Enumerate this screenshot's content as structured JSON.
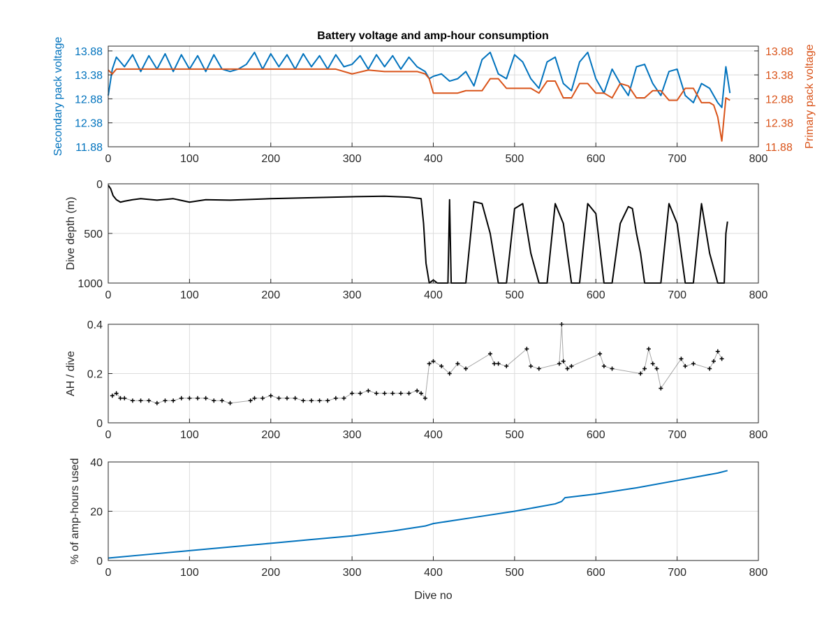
{
  "figure": {
    "title": "Battery voltage and amp-hour consumption",
    "colors": {
      "blue": "#0072BD",
      "orange": "#D95319",
      "black": "#000000",
      "axis": "#262626",
      "grid": "#dcdcdc"
    }
  },
  "chart_data": [
    {
      "type": "line",
      "title": "Battery voltage and amp-hour consumption",
      "xlabel": "",
      "ylabel": "Secondary pack voltage",
      "ylabel_right": "Primary pack voltage",
      "xlim": [
        0,
        800
      ],
      "ylim": [
        11.88,
        13.98
      ],
      "xticks": [
        0,
        100,
        200,
        300,
        400,
        500,
        600,
        700,
        800
      ],
      "yticks": [
        11.88,
        12.38,
        12.88,
        13.38,
        13.88
      ],
      "ytick_labels": [
        "11.88",
        "12.38",
        "12.88",
        "13.38",
        "13.88"
      ],
      "grid": true,
      "series": [
        {
          "color": "#0072BD",
          "axis": "left",
          "x": [
            0,
            5,
            10,
            20,
            30,
            40,
            50,
            60,
            70,
            80,
            90,
            100,
            110,
            120,
            130,
            140,
            150,
            160,
            170,
            180,
            190,
            200,
            210,
            220,
            230,
            240,
            250,
            260,
            270,
            280,
            290,
            300,
            310,
            320,
            330,
            340,
            350,
            360,
            370,
            380,
            390,
            395,
            400,
            410,
            420,
            430,
            440,
            450,
            460,
            470,
            480,
            490,
            500,
            510,
            520,
            530,
            540,
            550,
            560,
            570,
            580,
            590,
            600,
            610,
            620,
            630,
            640,
            650,
            660,
            670,
            680,
            690,
            700,
            710,
            720,
            730,
            740,
            750,
            755,
            760,
            765
          ],
          "y": [
            12.95,
            13.5,
            13.75,
            13.55,
            13.8,
            13.45,
            13.78,
            13.5,
            13.82,
            13.45,
            13.8,
            13.5,
            13.78,
            13.45,
            13.8,
            13.5,
            13.45,
            13.5,
            13.6,
            13.85,
            13.5,
            13.82,
            13.55,
            13.8,
            13.5,
            13.82,
            13.55,
            13.78,
            13.5,
            13.8,
            13.55,
            13.6,
            13.78,
            13.5,
            13.8,
            13.55,
            13.78,
            13.5,
            13.75,
            13.55,
            13.45,
            13.3,
            13.35,
            13.4,
            13.25,
            13.3,
            13.45,
            13.15,
            13.7,
            13.85,
            13.4,
            13.3,
            13.8,
            13.65,
            13.3,
            13.1,
            13.65,
            13.75,
            13.2,
            13.05,
            13.65,
            13.85,
            13.3,
            13.0,
            13.5,
            13.2,
            12.95,
            13.55,
            13.6,
            13.2,
            12.95,
            13.45,
            13.5,
            12.95,
            12.8,
            13.2,
            13.1,
            12.8,
            12.7,
            13.55,
            13.0
          ]
        },
        {
          "color": "#D95319",
          "axis": "right",
          "x": [
            0,
            5,
            10,
            20,
            30,
            40,
            50,
            60,
            70,
            80,
            90,
            100,
            120,
            140,
            160,
            180,
            200,
            220,
            240,
            260,
            280,
            300,
            320,
            340,
            360,
            380,
            390,
            395,
            400,
            410,
            420,
            430,
            440,
            450,
            460,
            470,
            480,
            490,
            500,
            510,
            520,
            530,
            540,
            550,
            560,
            570,
            580,
            590,
            600,
            610,
            620,
            630,
            640,
            650,
            660,
            670,
            680,
            690,
            700,
            710,
            720,
            730,
            740,
            745,
            750,
            755,
            760,
            765
          ],
          "y": [
            13.48,
            13.4,
            13.5,
            13.5,
            13.5,
            13.5,
            13.5,
            13.5,
            13.5,
            13.5,
            13.5,
            13.5,
            13.5,
            13.5,
            13.5,
            13.5,
            13.5,
            13.5,
            13.5,
            13.5,
            13.5,
            13.4,
            13.48,
            13.45,
            13.45,
            13.45,
            13.4,
            13.3,
            13.0,
            13.0,
            13.0,
            13.0,
            13.05,
            13.05,
            13.05,
            13.3,
            13.3,
            13.1,
            13.1,
            13.1,
            13.1,
            13.0,
            13.25,
            13.25,
            12.9,
            12.9,
            13.2,
            13.2,
            13.0,
            13.0,
            12.9,
            13.2,
            13.15,
            12.9,
            12.9,
            13.05,
            13.05,
            12.85,
            12.85,
            13.1,
            13.1,
            12.8,
            12.8,
            12.75,
            12.5,
            12.0,
            12.9,
            12.85
          ]
        }
      ]
    },
    {
      "type": "line",
      "title": "",
      "xlabel": "",
      "ylabel": "Dive depth (m)",
      "xlim": [
        0,
        800
      ],
      "ylim": [
        0,
        1000
      ],
      "y_reversed": true,
      "xticks": [
        0,
        100,
        200,
        300,
        400,
        500,
        600,
        700,
        800
      ],
      "yticks": [
        0,
        500,
        1000
      ],
      "grid": true,
      "series": [
        {
          "color": "#000000",
          "x": [
            0,
            3,
            6,
            10,
            15,
            20,
            30,
            40,
            60,
            80,
            100,
            120,
            150,
            200,
            250,
            300,
            340,
            370,
            385,
            388,
            391,
            395,
            400,
            405,
            418,
            420,
            422,
            430,
            440,
            450,
            460,
            470,
            480,
            490,
            500,
            510,
            520,
            530,
            540,
            550,
            560,
            570,
            580,
            590,
            600,
            610,
            620,
            630,
            640,
            645,
            650,
            655,
            660,
            670,
            680,
            690,
            700,
            710,
            720,
            730,
            740,
            750,
            758,
            760,
            762
          ],
          "y": [
            15,
            50,
            120,
            160,
            185,
            175,
            160,
            150,
            165,
            150,
            185,
            160,
            165,
            150,
            140,
            130,
            125,
            135,
            150,
            400,
            800,
            1000,
            970,
            1000,
            1000,
            160,
            1000,
            1000,
            1000,
            180,
            200,
            500,
            1000,
            1000,
            250,
            200,
            700,
            1000,
            1000,
            200,
            400,
            1000,
            1000,
            200,
            300,
            1000,
            1000,
            400,
            230,
            250,
            500,
            700,
            1000,
            1000,
            1000,
            200,
            400,
            1000,
            1000,
            200,
            700,
            1000,
            1000,
            500,
            380
          ]
        }
      ]
    },
    {
      "type": "scatter",
      "title": "",
      "xlabel": "",
      "ylabel": "AH / dive",
      "xlim": [
        0,
        800
      ],
      "ylim": [
        0,
        0.4
      ],
      "xticks": [
        0,
        100,
        200,
        300,
        400,
        500,
        600,
        700,
        800
      ],
      "yticks": [
        0,
        0.2,
        0.4
      ],
      "ytick_labels": [
        "0",
        "0.2",
        "0.4"
      ],
      "grid": true,
      "series": [
        {
          "color": "#000000",
          "x": [
            5,
            10,
            15,
            20,
            30,
            40,
            50,
            60,
            70,
            80,
            90,
            100,
            110,
            120,
            130,
            140,
            150,
            175,
            180,
            190,
            200,
            210,
            220,
            230,
            240,
            250,
            260,
            270,
            280,
            290,
            300,
            310,
            320,
            330,
            340,
            350,
            360,
            370,
            380,
            385,
            390,
            395,
            400,
            410,
            420,
            430,
            440,
            470,
            475,
            480,
            490,
            515,
            520,
            530,
            555,
            558,
            560,
            565,
            570,
            605,
            610,
            620,
            655,
            660,
            665,
            670,
            675,
            680,
            705,
            710,
            720,
            740,
            745,
            750,
            755
          ],
          "y": [
            0.11,
            0.12,
            0.1,
            0.1,
            0.09,
            0.09,
            0.09,
            0.08,
            0.09,
            0.09,
            0.1,
            0.1,
            0.1,
            0.1,
            0.09,
            0.09,
            0.08,
            0.09,
            0.1,
            0.1,
            0.11,
            0.1,
            0.1,
            0.1,
            0.09,
            0.09,
            0.09,
            0.09,
            0.1,
            0.1,
            0.12,
            0.12,
            0.13,
            0.12,
            0.12,
            0.12,
            0.12,
            0.12,
            0.13,
            0.12,
            0.1,
            0.24,
            0.25,
            0.23,
            0.2,
            0.24,
            0.22,
            0.28,
            0.24,
            0.24,
            0.23,
            0.3,
            0.23,
            0.22,
            0.24,
            0.4,
            0.25,
            0.22,
            0.23,
            0.28,
            0.23,
            0.22,
            0.2,
            0.22,
            0.3,
            0.24,
            0.22,
            0.14,
            0.26,
            0.23,
            0.24,
            0.22,
            0.25,
            0.29,
            0.26
          ]
        }
      ]
    },
    {
      "type": "line",
      "title": "",
      "xlabel": "Dive no",
      "ylabel": "% of amp-hours used",
      "xlim": [
        0,
        800
      ],
      "ylim": [
        0,
        40
      ],
      "xticks": [
        0,
        100,
        200,
        300,
        400,
        500,
        600,
        700,
        800
      ],
      "yticks": [
        0,
        20,
        40
      ],
      "grid": true,
      "series": [
        {
          "color": "#0072BD",
          "x": [
            0,
            50,
            100,
            150,
            200,
            250,
            300,
            350,
            390,
            400,
            450,
            500,
            550,
            558,
            562,
            600,
            650,
            700,
            750,
            762
          ],
          "y": [
            1,
            2.5,
            4,
            5.5,
            7,
            8.5,
            10,
            12,
            14,
            15,
            17.5,
            20,
            23,
            24,
            25.5,
            27,
            29.5,
            32.5,
            35.5,
            36.5
          ]
        }
      ]
    }
  ]
}
